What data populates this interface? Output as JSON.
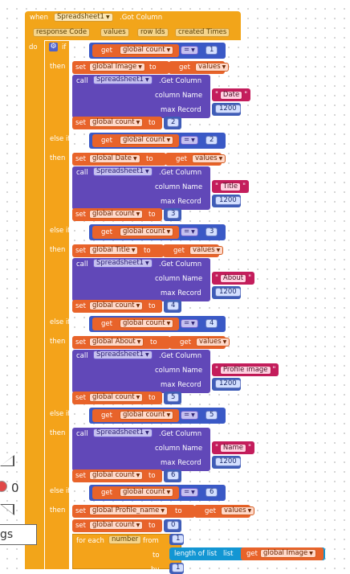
{
  "event": {
    "when": "when",
    "component": "Spreadsheet1",
    ".got": ".Got Column",
    "params": [
      "response Code",
      "values",
      "row Ids",
      "created Times"
    ],
    "do": "do"
  },
  "kw": {
    "if": "if",
    "then": "then",
    "else_if": "else if",
    "set": "set",
    "get": "get",
    "to": "to",
    "call": "call",
    "get_column": ".Get Column",
    "column_name": "column Name",
    "max_record": "max Record",
    "eq": "=",
    "for_each": "for each",
    "from": "from",
    "to2": "to",
    "by": "by",
    "length": "length of list",
    "list": "list"
  },
  "vars": {
    "count": "global count",
    "image": "global Image",
    "date": "global Date",
    "title": "global Title",
    "about": "global About",
    "profile": "global Profile_name",
    "values": "values",
    "number": "number"
  },
  "component": "Spreadsheet1",
  "branches": [
    {
      "n": "1",
      "target": "global Image",
      "col": "Date",
      "rec": "1200",
      "next": "2"
    },
    {
      "n": "2",
      "target": "global Date",
      "col": "Title",
      "rec": "1200",
      "next": "3"
    },
    {
      "n": "3",
      "target": "global Title",
      "col": "About",
      "rec": "1200",
      "next": "4"
    },
    {
      "n": "4",
      "target": "global About",
      "col": "Profile image",
      "rec": "1200",
      "next": "5"
    },
    {
      "n": "5",
      "col": "Name",
      "rec": "1200",
      "next": "6"
    },
    {
      "n": "6",
      "target": "global Profile_name",
      "next": "0"
    }
  ],
  "loop": {
    "from": "1",
    "by": "1"
  },
  "peek": {
    "count": "0",
    "label": "gs"
  }
}
